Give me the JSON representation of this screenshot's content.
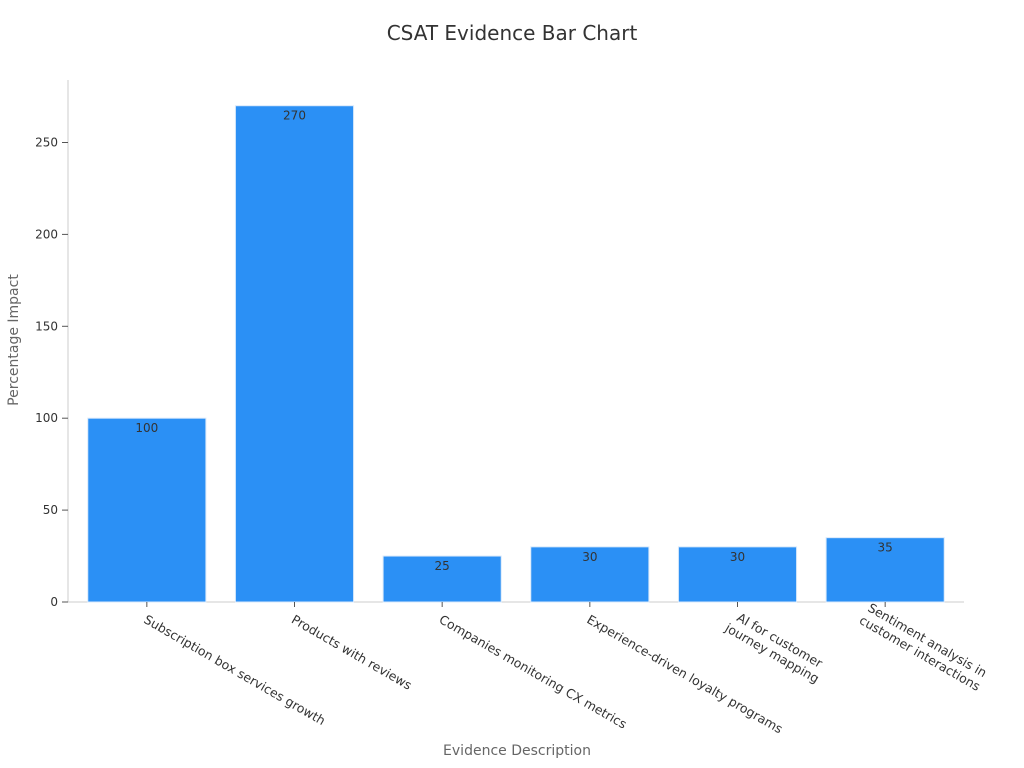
{
  "chart_data": {
    "type": "bar",
    "title": "CSAT Evidence Bar Chart",
    "xlabel": "Evidence Description",
    "ylabel": "Percentage Impact",
    "categories": [
      [
        "Subscription box services growth"
      ],
      [
        "Products with reviews"
      ],
      [
        "Companies monitoring CX metrics"
      ],
      [
        "Experience-driven loyalty programs"
      ],
      [
        "AI for customer",
        "journey mapping"
      ],
      [
        "Sentiment analysis in",
        "customer interactions"
      ]
    ],
    "values": [
      100,
      270,
      25,
      30,
      30,
      35
    ],
    "value_labels": [
      "100",
      "270",
      "25",
      "30",
      "30",
      "35"
    ],
    "yticks": [
      0,
      50,
      100,
      150,
      200,
      250
    ],
    "ytick_labels": [
      "0",
      "50",
      "100",
      "150",
      "200",
      "250"
    ],
    "ylim": [
      0,
      284
    ],
    "grid": false,
    "legend": "none",
    "bar_color": "#2b90f5"
  }
}
